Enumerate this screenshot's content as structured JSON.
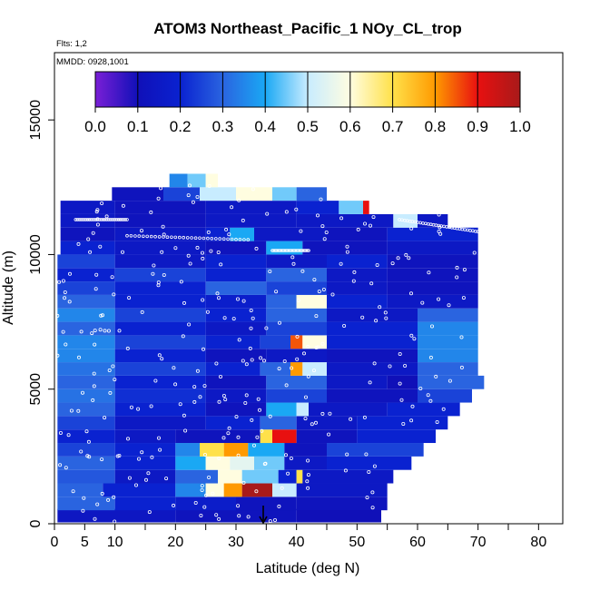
{
  "chart_data": {
    "type": "heatmap",
    "title": "ATOM3 Northeast_Pacific_1 NOy_CL_trop",
    "flights_note": "Flts: 1,2",
    "date_note": "MMDD: 0928,1001",
    "xlabel": "Latitude (deg N)",
    "ylabel": "Altitude (m)",
    "xlim": [
      0,
      84
    ],
    "ylim": [
      0,
      17500
    ],
    "x_ticks": [
      0,
      5,
      10,
      20,
      30,
      40,
      50,
      60,
      70,
      80
    ],
    "x_minor_ticks": [
      15,
      25,
      35,
      45,
      55,
      65,
      75,
      85
    ],
    "y_ticks": [
      0,
      5000,
      10000,
      15000
    ],
    "colorbar": {
      "range": [
        0,
        1
      ],
      "ticks": [
        0.0,
        0.1,
        0.2,
        0.3,
        0.4,
        0.5,
        0.6,
        0.7,
        0.8,
        0.9,
        1.0
      ],
      "tick_labels": [
        "0.0",
        "0.1",
        "0.2",
        "0.3",
        "0.4",
        "0.5",
        "0.6",
        "0.7",
        "0.8",
        "0.9",
        "1.0"
      ],
      "colors": [
        "#7a1fd6",
        "#1010b8",
        "#0a22d0",
        "#2a64e0",
        "#1aa8f4",
        "#c8ecff",
        "#fffde0",
        "#ffe14a",
        "#ff9a00",
        "#e81010",
        "#a81a1a"
      ]
    },
    "marker": {
      "latitude": 34.5,
      "label": "arrow"
    },
    "bands": [
      {
        "alt": 300,
        "lat_range": [
          0.5,
          54
        ],
        "segments": [
          {
            "lat": 0.5,
            "v": 0.14
          },
          {
            "lat": 20,
            "v": 0.12
          },
          {
            "lat": 40,
            "v": 0.1
          }
        ]
      },
      {
        "alt": 750,
        "lat_range": [
          0.5,
          55
        ],
        "segments": [
          {
            "lat": 0.5,
            "v": 0.3
          },
          {
            "lat": 10,
            "v": 0.2
          },
          {
            "lat": 20,
            "v": 0.17
          },
          {
            "lat": 30,
            "v": 0.12
          },
          {
            "lat": 40,
            "v": 0.12
          }
        ]
      },
      {
        "alt": 1250,
        "lat_range": [
          0.5,
          55
        ],
        "segments": [
          {
            "lat": 0.5,
            "v": 0.3
          },
          {
            "lat": 8,
            "v": 0.2
          },
          {
            "lat": 20,
            "v": 0.35
          },
          {
            "lat": 25,
            "v": 0.6
          },
          {
            "lat": 28,
            "v": 0.8
          },
          {
            "lat": 31,
            "v": 1.0
          },
          {
            "lat": 36,
            "v": 0.5
          },
          {
            "lat": 40,
            "v": 0.15
          }
        ]
      },
      {
        "alt": 1750,
        "lat_range": [
          0.5,
          56
        ],
        "segments": [
          {
            "lat": 0.5,
            "v": 0.28
          },
          {
            "lat": 10,
            "v": 0.15
          },
          {
            "lat": 20,
            "v": 0.3
          },
          {
            "lat": 27,
            "v": 0.6
          },
          {
            "lat": 31,
            "v": 0.45
          },
          {
            "lat": 37,
            "v": 0.2
          },
          {
            "lat": 40,
            "v": 0.7
          },
          {
            "lat": 41,
            "v": 0.15
          }
        ]
      },
      {
        "alt": 2250,
        "lat_range": [
          0.5,
          59
        ],
        "segments": [
          {
            "lat": 0.5,
            "v": 0.3
          },
          {
            "lat": 10,
            "v": 0.2
          },
          {
            "lat": 20,
            "v": 0.4
          },
          {
            "lat": 25,
            "v": 0.6
          },
          {
            "lat": 29,
            "v": 0.55
          },
          {
            "lat": 33,
            "v": 0.45
          },
          {
            "lat": 38,
            "v": 0.15
          },
          {
            "lat": 45,
            "v": 0.2
          }
        ]
      },
      {
        "alt": 2750,
        "lat_range": [
          0.5,
          61
        ],
        "segments": [
          {
            "lat": 0.5,
            "v": 0.25
          },
          {
            "lat": 10,
            "v": 0.2
          },
          {
            "lat": 20,
            "v": 0.35
          },
          {
            "lat": 24,
            "v": 0.7
          },
          {
            "lat": 28,
            "v": 0.8
          },
          {
            "lat": 32,
            "v": 0.4
          },
          {
            "lat": 38,
            "v": 0.12
          },
          {
            "lat": 45,
            "v": 0.25
          }
        ]
      },
      {
        "alt": 3250,
        "lat_range": [
          0.5,
          63
        ],
        "segments": [
          {
            "lat": 0.5,
            "v": 0.2
          },
          {
            "lat": 10,
            "v": 0.15
          },
          {
            "lat": 20,
            "v": 0.12
          },
          {
            "lat": 34,
            "v": 0.7
          },
          {
            "lat": 36,
            "v": 0.9
          },
          {
            "lat": 40,
            "v": 0.12
          },
          {
            "lat": 50,
            "v": 0.2
          }
        ]
      },
      {
        "alt": 3750,
        "lat_range": [
          0.5,
          65
        ],
        "segments": [
          {
            "lat": 0.5,
            "v": 0.25
          },
          {
            "lat": 10,
            "v": 0.15
          },
          {
            "lat": 25,
            "v": 0.2
          },
          {
            "lat": 34,
            "v": 0.3
          },
          {
            "lat": 40,
            "v": 0.15
          },
          {
            "lat": 50,
            "v": 0.2
          }
        ]
      },
      {
        "alt": 4250,
        "lat_range": [
          0.5,
          67
        ],
        "segments": [
          {
            "lat": 0.5,
            "v": 0.3
          },
          {
            "lat": 10,
            "v": 0.2
          },
          {
            "lat": 25,
            "v": 0.12
          },
          {
            "lat": 35,
            "v": 0.4
          },
          {
            "lat": 40,
            "v": 0.5
          },
          {
            "lat": 42,
            "v": 0.15
          },
          {
            "lat": 55,
            "v": 0.2
          }
        ]
      },
      {
        "alt": 4750,
        "lat_range": [
          0.5,
          69
        ],
        "segments": [
          {
            "lat": 0.5,
            "v": 0.32
          },
          {
            "lat": 10,
            "v": 0.22
          },
          {
            "lat": 25,
            "v": 0.15
          },
          {
            "lat": 35,
            "v": 0.25
          },
          {
            "lat": 45,
            "v": 0.12
          },
          {
            "lat": 60,
            "v": 0.25
          }
        ]
      },
      {
        "alt": 5250,
        "lat_range": [
          0.5,
          71
        ],
        "segments": [
          {
            "lat": 0.5,
            "v": 0.3
          },
          {
            "lat": 10,
            "v": 0.2
          },
          {
            "lat": 25,
            "v": 0.12
          },
          {
            "lat": 35,
            "v": 0.3
          },
          {
            "lat": 45,
            "v": 0.15
          },
          {
            "lat": 55,
            "v": 0.1
          },
          {
            "lat": 60,
            "v": 0.3
          }
        ]
      },
      {
        "alt": 5750,
        "lat_range": [
          0.5,
          70
        ],
        "segments": [
          {
            "lat": 0.5,
            "v": 0.32
          },
          {
            "lat": 10,
            "v": 0.25
          },
          {
            "lat": 25,
            "v": 0.2
          },
          {
            "lat": 34,
            "v": 0.3
          },
          {
            "lat": 39,
            "v": 0.8
          },
          {
            "lat": 41,
            "v": 0.5
          },
          {
            "lat": 45,
            "v": 0.15
          },
          {
            "lat": 60,
            "v": 0.3
          }
        ]
      },
      {
        "alt": 6250,
        "lat_range": [
          0.5,
          70
        ],
        "segments": [
          {
            "lat": 0.5,
            "v": 0.35
          },
          {
            "lat": 10,
            "v": 0.2
          },
          {
            "lat": 25,
            "v": 0.12
          },
          {
            "lat": 35,
            "v": 0.15
          },
          {
            "lat": 45,
            "v": 0.12
          },
          {
            "lat": 60,
            "v": 0.35
          }
        ]
      },
      {
        "alt": 6750,
        "lat_range": [
          0.5,
          70
        ],
        "segments": [
          {
            "lat": 0.5,
            "v": 0.35
          },
          {
            "lat": 10,
            "v": 0.25
          },
          {
            "lat": 25,
            "v": 0.2
          },
          {
            "lat": 34,
            "v": 0.25
          },
          {
            "lat": 39,
            "v": 0.85
          },
          {
            "lat": 41,
            "v": 0.6
          },
          {
            "lat": 45,
            "v": 0.2
          },
          {
            "lat": 60,
            "v": 0.35
          }
        ]
      },
      {
        "alt": 7250,
        "lat_range": [
          0.5,
          70
        ],
        "segments": [
          {
            "lat": 0.5,
            "v": 0.3
          },
          {
            "lat": 10,
            "v": 0.2
          },
          {
            "lat": 25,
            "v": 0.15
          },
          {
            "lat": 35,
            "v": 0.25
          },
          {
            "lat": 45,
            "v": 0.2
          },
          {
            "lat": 60,
            "v": 0.35
          }
        ]
      },
      {
        "alt": 7750,
        "lat_range": [
          0.5,
          70
        ],
        "segments": [
          {
            "lat": 0.5,
            "v": 0.35
          },
          {
            "lat": 10,
            "v": 0.25
          },
          {
            "lat": 25,
            "v": 0.2
          },
          {
            "lat": 35,
            "v": 0.3
          },
          {
            "lat": 45,
            "v": 0.15
          },
          {
            "lat": 60,
            "v": 0.3
          }
        ]
      },
      {
        "alt": 8250,
        "lat_range": [
          0.5,
          70
        ],
        "segments": [
          {
            "lat": 0.5,
            "v": 0.3
          },
          {
            "lat": 10,
            "v": 0.2
          },
          {
            "lat": 25,
            "v": 0.18
          },
          {
            "lat": 35,
            "v": 0.3
          },
          {
            "lat": 40,
            "v": 0.6
          },
          {
            "lat": 45,
            "v": 0.2
          },
          {
            "lat": 55,
            "v": 0.15
          }
        ]
      },
      {
        "alt": 8750,
        "lat_range": [
          0.5,
          70
        ],
        "segments": [
          {
            "lat": 0.5,
            "v": 0.25
          },
          {
            "lat": 10,
            "v": 0.2
          },
          {
            "lat": 25,
            "v": 0.3
          },
          {
            "lat": 35,
            "v": 0.25
          },
          {
            "lat": 45,
            "v": 0.15
          },
          {
            "lat": 55,
            "v": 0.12
          }
        ]
      },
      {
        "alt": 9250,
        "lat_range": [
          0.5,
          70
        ],
        "segments": [
          {
            "lat": 0.5,
            "v": 0.2
          },
          {
            "lat": 10,
            "v": 0.25
          },
          {
            "lat": 25,
            "v": 0.2
          },
          {
            "lat": 35,
            "v": 0.3
          },
          {
            "lat": 45,
            "v": 0.15
          },
          {
            "lat": 55,
            "v": 0.12
          }
        ]
      },
      {
        "alt": 9750,
        "lat_range": [
          0.5,
          70
        ],
        "segments": [
          {
            "lat": 0.5,
            "v": 0.25
          },
          {
            "lat": 10,
            "v": 0.15
          },
          {
            "lat": 25,
            "v": 0.2
          },
          {
            "lat": 35,
            "v": 0.15
          },
          {
            "lat": 45,
            "v": 0.2
          },
          {
            "lat": 55,
            "v": 0.12
          }
        ]
      },
      {
        "alt": 10250,
        "lat_range": [
          1,
          70
        ],
        "segments": [
          {
            "lat": 1,
            "v": 0.2
          },
          {
            "lat": 10,
            "v": 0.15
          },
          {
            "lat": 25,
            "v": 0.12
          },
          {
            "lat": 35,
            "v": 0.4
          },
          {
            "lat": 41,
            "v": 0.12
          },
          {
            "lat": 55,
            "v": 0.15
          }
        ]
      },
      {
        "alt": 10750,
        "lat_range": [
          1,
          70
        ],
        "segments": [
          {
            "lat": 1,
            "v": 0.12
          },
          {
            "lat": 10,
            "v": 0.15
          },
          {
            "lat": 25,
            "v": 0.2
          },
          {
            "lat": 29,
            "v": 0.4
          },
          {
            "lat": 33,
            "v": 0.15
          },
          {
            "lat": 45,
            "v": 0.12
          },
          {
            "lat": 55,
            "v": 0.2
          }
        ]
      },
      {
        "alt": 11250,
        "lat_range": [
          1,
          65
        ],
        "segments": [
          {
            "lat": 1,
            "v": 0.15
          },
          {
            "lat": 10,
            "v": 0.12
          },
          {
            "lat": 25,
            "v": 0.15
          },
          {
            "lat": 40,
            "v": 0.15
          },
          {
            "lat": 56,
            "v": 0.5
          },
          {
            "lat": 60,
            "v": 0.15
          }
        ]
      },
      {
        "alt": 11750,
        "lat_range": [
          1,
          52
        ],
        "segments": [
          {
            "lat": 1,
            "v": 0.15
          },
          {
            "lat": 10,
            "v": 0.12
          },
          {
            "lat": 25,
            "v": 0.15
          },
          {
            "lat": 40,
            "v": 0.2
          },
          {
            "lat": 47,
            "v": 0.45
          },
          {
            "lat": 51,
            "v": 0.9
          }
        ]
      },
      {
        "alt": 12250,
        "lat_range": [
          9.5,
          45
        ],
        "segments": [
          {
            "lat": 9.5,
            "v": 0.12
          },
          {
            "lat": 18,
            "v": 0.25
          },
          {
            "lat": 24,
            "v": 0.5
          },
          {
            "lat": 30,
            "v": 0.6
          },
          {
            "lat": 36,
            "v": 0.45
          },
          {
            "lat": 40,
            "v": 0.3
          }
        ]
      },
      {
        "alt": 12750,
        "lat_range": [
          19,
          27
        ],
        "segments": [
          {
            "lat": 19,
            "v": 0.35
          },
          {
            "lat": 22,
            "v": 0.45
          },
          {
            "lat": 25,
            "v": 0.6
          }
        ]
      }
    ]
  }
}
